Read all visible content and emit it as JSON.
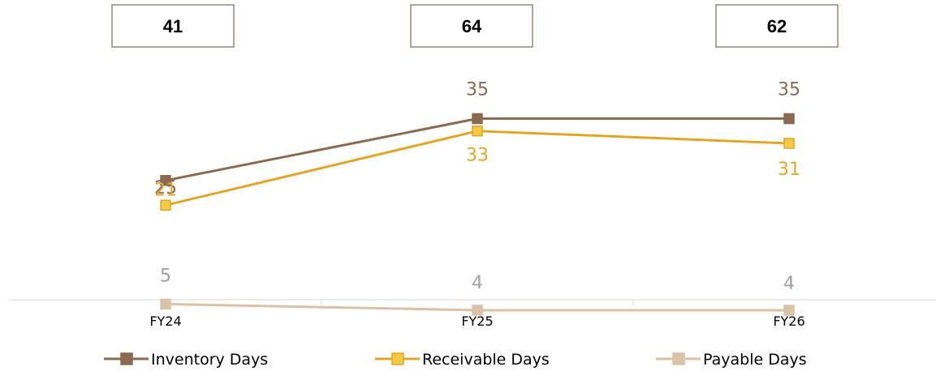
{
  "chart_data": {
    "type": "line",
    "categories": [
      "FY24",
      "FY25",
      "FY26"
    ],
    "totals": [
      41,
      64,
      62
    ],
    "series": [
      {
        "name": "Inventory Days",
        "values": [
          25,
          35,
          35
        ],
        "color": "#8B6A50"
      },
      {
        "name": "Receivable Days",
        "values": [
          21,
          33,
          31
        ],
        "color": "#E0A82A"
      },
      {
        "name": "Payable Days",
        "values": [
          5,
          4,
          4
        ],
        "color": "#D9C2A5",
        "label_color": "#A0A0A0"
      }
    ],
    "ylim": [
      0,
      45
    ],
    "grid": false,
    "legend": "bottom"
  }
}
